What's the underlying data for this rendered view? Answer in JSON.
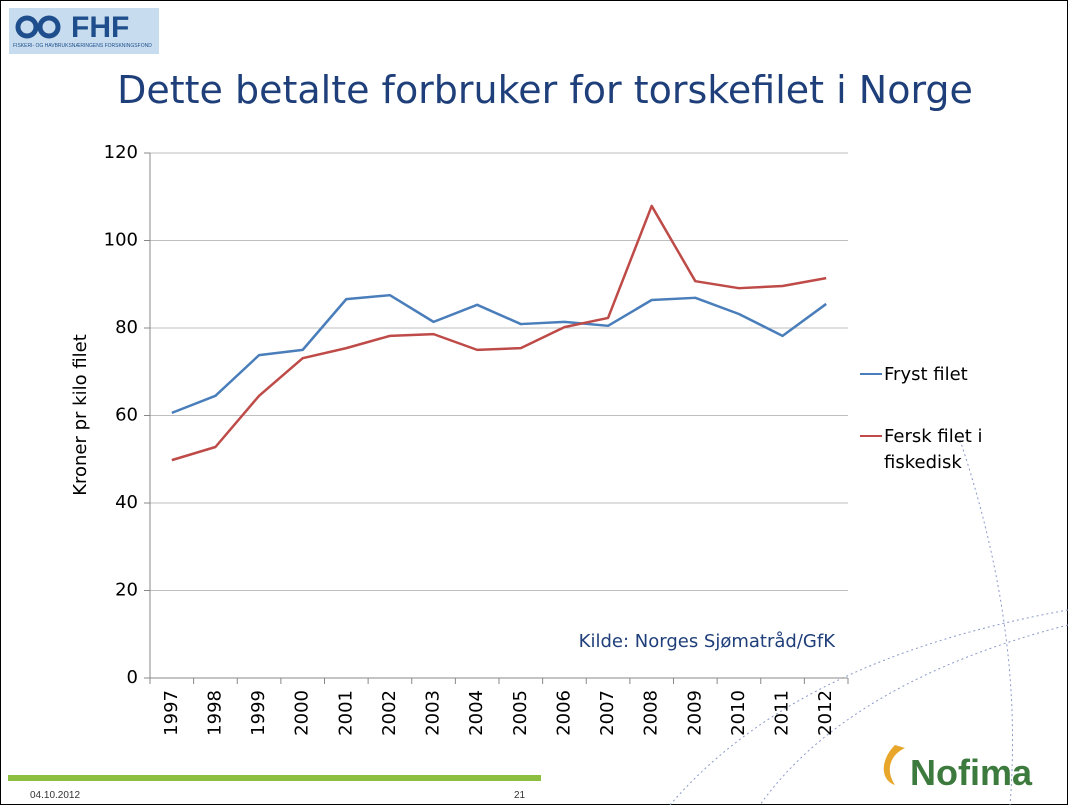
{
  "header": {
    "logo": "FHF",
    "logo_subtitle": "FISKERI- OG HAVBRUKSNÆRINGENS FORSKNINGSFOND"
  },
  "footer": {
    "date": "04.10.2012",
    "page": "21",
    "logo": "Nofima"
  },
  "chart_data": {
    "type": "line",
    "title": "Dette betalte forbruker for torskefilet i Norge",
    "y_label": "Kroner pr kilo filet",
    "annotation": "Kilde: Norges Sjømatråd/GfK",
    "categories": [
      "1997",
      "1998",
      "1999",
      "2000",
      "2001",
      "2002",
      "2003",
      "2004",
      "2005",
      "2006",
      "2007",
      "2008",
      "2009",
      "2010",
      "2011",
      "2012"
    ],
    "series": [
      {
        "name": "Fryst filet",
        "color": "#4a7ebb",
        "values": [
          60.6,
          64.5,
          73.8,
          75,
          86.6,
          87.5,
          81.4,
          85.3,
          80.9,
          81.4,
          80.5,
          86.4,
          86.9,
          83.2,
          78.2,
          85.5
        ]
      },
      {
        "name": "Fersk filet i fiskedisk",
        "color": "#be4b48",
        "values": [
          49.8,
          52.8,
          64.5,
          73.1,
          75.4,
          78.2,
          78.6,
          75,
          75.4,
          80.2,
          82.3,
          107.9,
          90.7,
          89.1,
          89.6,
          91.4
        ]
      }
    ],
    "ylim": [
      0,
      120
    ],
    "yticks": [
      0,
      20,
      40,
      60,
      80,
      100,
      120
    ],
    "grid": true
  }
}
